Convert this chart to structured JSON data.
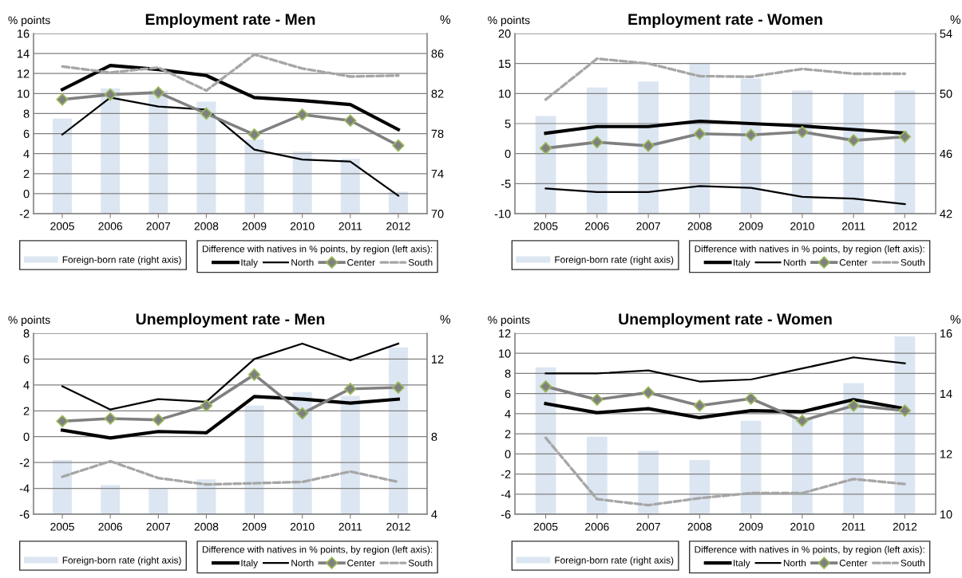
{
  "chart_data": [
    {
      "type": "line",
      "title": "Employment rate - Men",
      "ylabel": "% points",
      "y2label": "%",
      "legend_title": "Difference with natives in % points, by region (left axis):",
      "categories": [
        "2005",
        "2006",
        "2007",
        "2008",
        "2009",
        "2010",
        "2011",
        "2012"
      ],
      "ylim": [
        -2,
        16
      ],
      "yticks": [
        -2,
        0,
        2,
        4,
        6,
        8,
        10,
        12,
        14,
        16
      ],
      "y2lim": [
        70,
        88
      ],
      "y2ticks": [
        70,
        74,
        78,
        82,
        86
      ],
      "grid": "y",
      "legend": "bottom",
      "series": [
        {
          "name": "Foreign-born rate (right axis)",
          "type": "bar",
          "axis": "y2",
          "color": "#dce6f2",
          "values": [
            79.5,
            82.5,
            82.3,
            81.2,
            77.4,
            76.2,
            75.5,
            72.2
          ]
        },
        {
          "name": "Italy",
          "color": "#000000",
          "values": [
            10.4,
            12.8,
            12.4,
            11.8,
            9.6,
            9.3,
            8.9,
            6.4
          ]
        },
        {
          "name": "North",
          "color": "#000000",
          "values": [
            5.9,
            9.6,
            8.7,
            8.4,
            4.4,
            3.4,
            3.2,
            -0.2
          ]
        },
        {
          "name": "Center",
          "color": "#808080",
          "marker": "diamond",
          "values": [
            9.4,
            9.9,
            10.1,
            8.0,
            5.9,
            7.9,
            7.3,
            4.8
          ]
        },
        {
          "name": "South",
          "color": "#a6a6a6",
          "line_style": "dashed",
          "values": [
            12.7,
            12.1,
            12.6,
            10.3,
            13.9,
            12.5,
            11.7,
            11.8
          ]
        }
      ]
    },
    {
      "type": "line",
      "title": "Employment rate - Women",
      "ylabel": "% points",
      "y2label": "%",
      "legend_title": "Difference with natives in % points, by region (left axis):",
      "categories": [
        "2005",
        "2006",
        "2007",
        "2008",
        "2009",
        "2010",
        "2011",
        "2012"
      ],
      "ylim": [
        -10,
        20
      ],
      "yticks": [
        -10,
        -5,
        0,
        5,
        10,
        15,
        20
      ],
      "y2lim": [
        42,
        54
      ],
      "y2ticks": [
        42,
        46,
        50,
        54
      ],
      "grid": "y",
      "legend": "bottom",
      "series": [
        {
          "name": "Foreign-born rate (right axis)",
          "type": "bar",
          "axis": "y2",
          "color": "#dce6f2",
          "values": [
            48.5,
            50.4,
            50.8,
            52.0,
            51.0,
            50.2,
            50.0,
            50.2
          ]
        },
        {
          "name": "Italy",
          "color": "#000000",
          "values": [
            3.4,
            4.5,
            4.5,
            5.4,
            5.0,
            4.6,
            4.0,
            3.4
          ]
        },
        {
          "name": "North",
          "color": "#000000",
          "values": [
            -5.8,
            -6.4,
            -6.4,
            -5.4,
            -5.7,
            -7.2,
            -7.5,
            -8.4
          ]
        },
        {
          "name": "Center",
          "color": "#808080",
          "marker": "diamond",
          "values": [
            0.9,
            1.9,
            1.3,
            3.3,
            3.1,
            3.6,
            2.2,
            2.8
          ]
        },
        {
          "name": "South",
          "color": "#a6a6a6",
          "line_style": "dashed",
          "values": [
            9.0,
            15.8,
            15.0,
            12.9,
            12.8,
            14.1,
            13.3,
            13.3
          ]
        }
      ]
    },
    {
      "type": "line",
      "title": "Unemployment rate - Men",
      "ylabel": "% points",
      "y2label": "%",
      "legend_title": "Difference with natives in % points, by region (left axis):",
      "categories": [
        "2005",
        "2006",
        "2007",
        "2008",
        "2009",
        "2010",
        "2011",
        "2012"
      ],
      "ylim": [
        -6,
        8
      ],
      "yticks": [
        -6,
        -4,
        -2,
        0,
        2,
        4,
        6,
        8
      ],
      "y2lim": [
        4,
        13.33
      ],
      "y2ticks": [
        4,
        8,
        12
      ],
      "grid": "y",
      "legend": "bottom",
      "series": [
        {
          "name": "Foreign-born rate (right axis)",
          "type": "bar",
          "axis": "y2",
          "color": "#dce6f2",
          "values": [
            6.8,
            5.5,
            5.3,
            5.8,
            9.6,
            10.3,
            10.1,
            12.6
          ]
        },
        {
          "name": "Italy",
          "color": "#000000",
          "values": [
            0.5,
            -0.1,
            0.4,
            0.3,
            3.1,
            2.9,
            2.6,
            2.9
          ]
        },
        {
          "name": "North",
          "color": "#000000",
          "values": [
            3.9,
            2.1,
            2.9,
            2.7,
            6.0,
            7.2,
            5.9,
            7.2
          ]
        },
        {
          "name": "Center",
          "color": "#808080",
          "marker": "diamond",
          "values": [
            1.2,
            1.4,
            1.3,
            2.4,
            4.8,
            1.8,
            3.7,
            3.8
          ]
        },
        {
          "name": "South",
          "color": "#a6a6a6",
          "line_style": "dashed",
          "values": [
            -3.1,
            -1.9,
            -3.2,
            -3.7,
            -3.6,
            -3.5,
            -2.7,
            -3.5
          ]
        }
      ]
    },
    {
      "type": "line",
      "title": "Unemployment rate - Women",
      "ylabel": "% points",
      "y2label": "%",
      "legend_title": "Difference with natives in % points, by region (left axis):",
      "categories": [
        "2005",
        "2006",
        "2007",
        "2008",
        "2009",
        "2010",
        "2011",
        "2012"
      ],
      "ylim": [
        -6,
        12
      ],
      "yticks": [
        -6,
        -4,
        -2,
        0,
        2,
        4,
        6,
        8,
        10,
        12
      ],
      "y2lim": [
        10,
        16
      ],
      "y2ticks": [
        10,
        12,
        14,
        16
      ],
      "grid": "y",
      "legend": "bottom",
      "series": [
        {
          "name": "Foreign-born rate (right axis)",
          "type": "bar",
          "axis": "y2",
          "color": "#dce6f2",
          "values": [
            14.87,
            12.57,
            12.1,
            11.8,
            13.1,
            13.2,
            14.35,
            15.9
          ]
        },
        {
          "name": "Italy",
          "color": "#000000",
          "values": [
            5.0,
            4.1,
            4.5,
            3.6,
            4.3,
            4.2,
            5.4,
            4.5
          ]
        },
        {
          "name": "North",
          "color": "#000000",
          "values": [
            8.0,
            8.0,
            8.3,
            7.2,
            7.4,
            8.5,
            9.6,
            9.0
          ]
        },
        {
          "name": "Center",
          "color": "#808080",
          "marker": "diamond",
          "values": [
            6.7,
            5.4,
            6.1,
            4.8,
            5.5,
            3.3,
            4.8,
            4.3
          ]
        },
        {
          "name": "South",
          "color": "#a6a6a6",
          "line_style": "dashed",
          "values": [
            1.6,
            -4.5,
            -5.1,
            -4.4,
            -3.9,
            -3.9,
            -2.5,
            -3.0
          ]
        }
      ]
    }
  ]
}
